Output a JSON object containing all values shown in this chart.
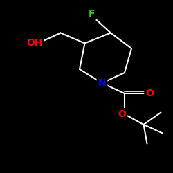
{
  "background_color": "#000000",
  "bond_color": "#ffffff",
  "atom_colors": {
    "F": "#32cd32",
    "N": "#0000ff",
    "O": "#ff0000",
    "C": "#ffffff",
    "H": "#ffffff"
  },
  "bond_width": 1.5,
  "font_size_atoms": 10
}
